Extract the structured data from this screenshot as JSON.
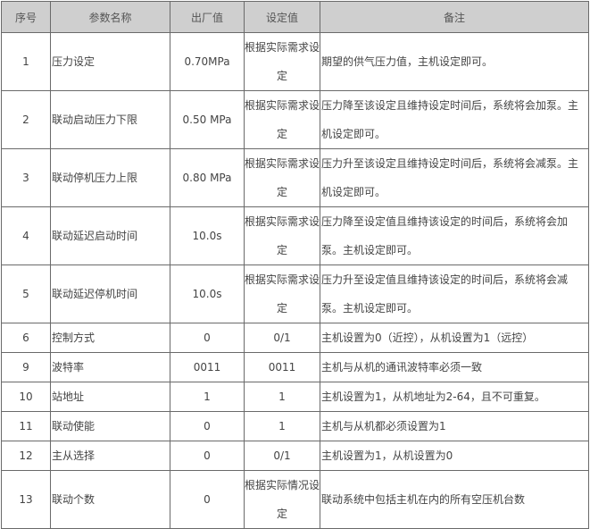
{
  "headers": [
    "序号",
    "参数名称",
    "出厂值",
    "设定值",
    "备注"
  ],
  "rows": [
    {
      "no": "1",
      "name": "压力设定",
      "factory": "0.70MPa",
      "setting": "根据实际需求设定",
      "note": "期望的供气压力值，主机设定即可。"
    },
    {
      "no": "2",
      "name": "联动启动压力下限",
      "factory": "0.50 MPa",
      "setting": "根据实际需求设定",
      "note": "压力降至该设定且维持设定时间后，系统将会加泵。主机设定即可。"
    },
    {
      "no": "3",
      "name": "联动停机压力上限",
      "factory": "0.80 MPa",
      "setting": "根据实际需求设定",
      "note": "压力升至该设定且维持设定时间后，系统将会减泵。主机设定即可。"
    },
    {
      "no": "4",
      "name": "联动延迟启动时间",
      "factory": "10.0s",
      "setting": "根据实际需求设定",
      "note": "压力降至设定值且维持该设定的时间后，系统将会加泵。主机设定即可。"
    },
    {
      "no": "5",
      "name": "联动延迟停机时间",
      "factory": "10.0s",
      "setting": "根据实际需求设定",
      "note": "压力升至设定值且维持该设定的时间后，系统将会减泵。主机设定即可。"
    },
    {
      "no": "6",
      "name": "控制方式",
      "factory": "0",
      "setting": "0/1",
      "note": "主机设置为0（近控），从机设置为1（远控）"
    },
    {
      "no": "9",
      "name": "波特率",
      "factory": "0011",
      "setting": "0011",
      "note": "主机与从机的通讯波特率必须一致"
    },
    {
      "no": "10",
      "name": "站地址",
      "factory": "1",
      "setting": "1",
      "note": "主机设置为1，从机地址为2-64，且不可重复。"
    },
    {
      "no": "11",
      "name": "联动使能",
      "factory": "0",
      "setting": "1",
      "note": "主机与从机都必须设置为1"
    },
    {
      "no": "12",
      "name": "主从选择",
      "factory": "0",
      "setting": "0/1",
      "note": "主机设置为1，从机设置为0"
    },
    {
      "no": "13",
      "name": "联动个数",
      "factory": "0",
      "setting": "根据实际情况设定",
      "note": "联动系统中包括主机在内的所有空压机台数"
    }
  ]
}
